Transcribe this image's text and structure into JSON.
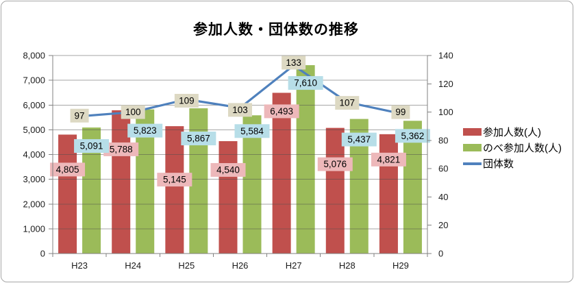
{
  "chart_data": {
    "type": "combo",
    "title": "参加人数・団体数の推移",
    "categories": [
      "H23",
      "H24",
      "H25",
      "H26",
      "H27",
      "H28",
      "H29"
    ],
    "series": [
      {
        "name": "参加人数(人)",
        "type": "bar",
        "axis": "left",
        "color": "#C0504D",
        "label_bg": "#EDB8BA",
        "values": [
          4805,
          5788,
          5145,
          4540,
          6493,
          5076,
          4821
        ]
      },
      {
        "name": "のべ参加人数(人)",
        "type": "bar",
        "axis": "left",
        "color": "#9BBB59",
        "label_bg": "#B7DEE8",
        "values": [
          5091,
          5823,
          5867,
          5584,
          7610,
          5437,
          5362
        ]
      },
      {
        "name": "団体数",
        "type": "line",
        "axis": "right",
        "color": "#4F81BD",
        "label_bg": "#DDD9C3",
        "values": [
          97,
          100,
          109,
          103,
          133,
          107,
          99
        ]
      }
    ],
    "left_axis": {
      "min": 0,
      "max": 8000,
      "step": 1000,
      "ticks": [
        "0",
        "1,000",
        "2,000",
        "3,000",
        "4,000",
        "5,000",
        "6,000",
        "7,000",
        "8,000"
      ]
    },
    "right_axis": {
      "min": 0,
      "max": 140,
      "step": 20,
      "ticks": [
        "0",
        "20",
        "40",
        "60",
        "80",
        "100",
        "120",
        "140"
      ]
    },
    "grid": true,
    "legend_position": "right",
    "layout": {
      "label_dy_series0": [
        51,
        57,
        78,
        42,
        27,
        53,
        37
      ],
      "label_dy_series1": [
        27,
        31,
        44,
        23,
        26,
        30,
        22
      ],
      "label_dy_series2": [
        -1,
        0,
        2,
        3,
        -4,
        1,
        -2
      ]
    },
    "colors": {
      "axis_line": "#808080",
      "gridline": "#4D4D4D",
      "tick_text": "#1A1A1A",
      "label_text": "#000000",
      "frame_border": "#A6A6A6"
    }
  }
}
